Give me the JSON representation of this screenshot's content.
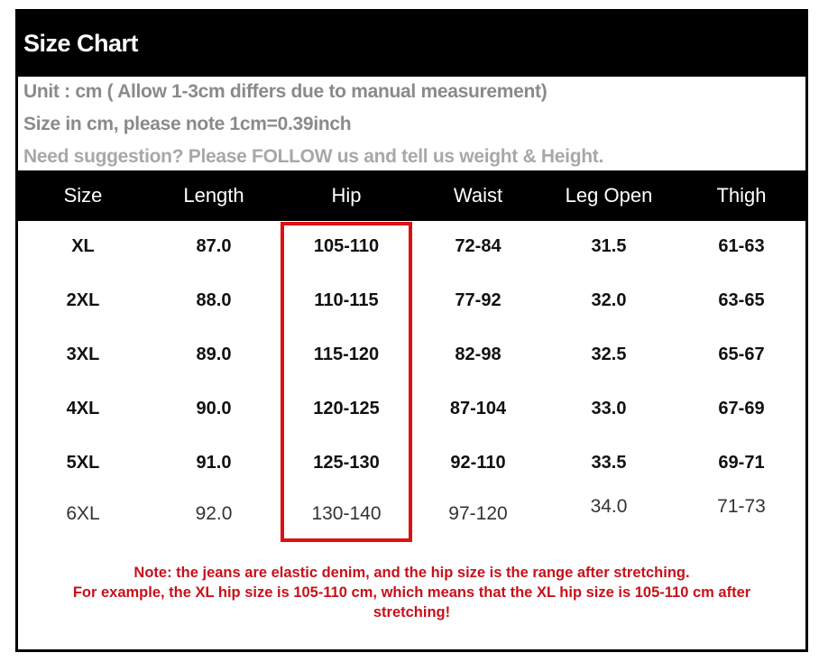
{
  "title": "Size Chart",
  "info_lines": [
    "Unit : cm ( Allow 1-3cm differs due to manual measurement)",
    "Size in cm, please note 1cm=0.39inch",
    "Need suggestion? Please FOLLOW us and tell us weight & Height."
  ],
  "table": {
    "headers": [
      "Size",
      "Length",
      "Hip",
      "Waist",
      "Leg Open",
      "Thigh"
    ],
    "rows": [
      [
        "XL",
        "87.0",
        "105-110",
        "72-84",
        "31.5",
        "61-63"
      ],
      [
        "2XL",
        "88.0",
        "110-115",
        "77-92",
        "32.0",
        "63-65"
      ],
      [
        "3XL",
        "89.0",
        "115-120",
        "82-98",
        "32.5",
        "65-67"
      ],
      [
        "4XL",
        "90.0",
        "120-125",
        "87-104",
        "33.0",
        "67-69"
      ],
      [
        "5XL",
        "91.0",
        "125-130",
        "92-110",
        "33.5",
        "69-71"
      ],
      [
        "6XL",
        "92.0",
        "130-140",
        "97-120",
        "34.0",
        "71-73"
      ]
    ],
    "highlighted_column": "Hip"
  },
  "note_lines": [
    "Note: the jeans are elastic denim, and the hip size is the range after stretching.",
    "For example, the XL hip size is 105-110 cm, which means that the XL hip size is 105-110 cm after",
    "stretching!"
  ],
  "colors": {
    "header_bg": "#000000",
    "info_text": "#8a8a8a",
    "note_text": "#c8101a",
    "highlight_border": "#dd1111"
  }
}
